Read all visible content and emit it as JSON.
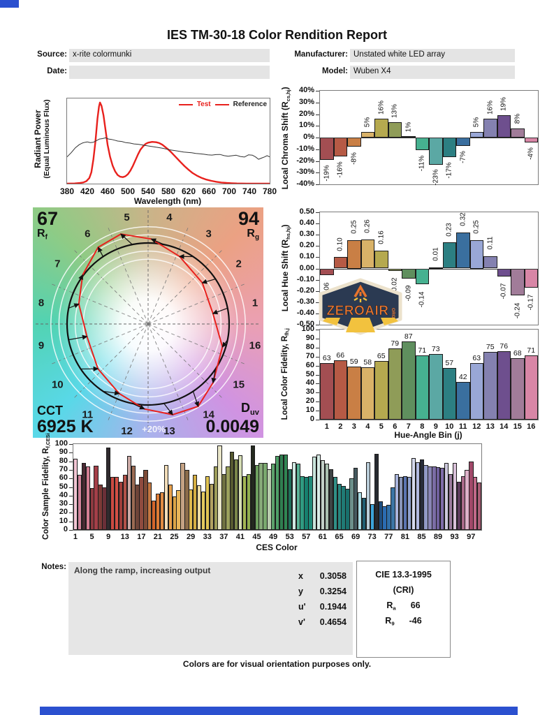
{
  "page": {
    "title": "IES TM-30-18 Color Rendition Report",
    "footer": "Colors are for visual orientation purposes only.",
    "accent_blue": "#2b50cf"
  },
  "header": {
    "source_label": "Source:",
    "source_value": "x-rite colormunki",
    "manufacturer_label": "Manufacturer:",
    "manufacturer_value": "Unstated white LED array",
    "date_label": "Date:",
    "date_value": "",
    "model_label": "Model:",
    "model_value": "Wuben X4"
  },
  "cvg": {
    "rf_value": "67",
    "rf_letter": "R",
    "rf_sub": "f",
    "rg_value": "94",
    "rg_letter": "R",
    "rg_sub": "g",
    "cct_label": "CCT",
    "cct_value": "6925 K",
    "duv_letter": "D",
    "duv_sub": "uv",
    "duv_value": "0.0049",
    "ring_label": "+20%",
    "bins": [
      "1",
      "2",
      "3",
      "4",
      "5",
      "6",
      "7",
      "8",
      "9",
      "10",
      "11",
      "12",
      "13",
      "14",
      "15",
      "16"
    ]
  },
  "logo": {
    "text": "ZEROAIR",
    "suffix": "ORG"
  },
  "notes": {
    "label": "Notes:",
    "text": "Along the ramp, increasing output"
  },
  "chromaticity": {
    "rows": [
      {
        "label": "x",
        "value": "0.3058"
      },
      {
        "label": "y",
        "value": "0.3254"
      },
      {
        "label": "u'",
        "value": "0.1944"
      },
      {
        "label": "v'",
        "value": "0.4654"
      }
    ]
  },
  "cie": {
    "title": "CIE 13.3-1995",
    "subtitle": "(CRI)",
    "rows": [
      {
        "letter": "R",
        "sub": "a",
        "value": "66"
      },
      {
        "letter": "R",
        "sub": "9",
        "value": "-46"
      }
    ]
  },
  "bin_colors": [
    "#a34e52",
    "#b65a45",
    "#c97f45",
    "#d9b268",
    "#b5a94f",
    "#8f9c58",
    "#5f8f5e",
    "#46b190",
    "#5ba8a4",
    "#2c7f82",
    "#3a6f9f",
    "#99a7d6",
    "#8481b0",
    "#6e4f8e",
    "#a17c99",
    "#d886a6"
  ],
  "chart_data": [
    {
      "id": "spd",
      "type": "line",
      "xlabel": "Wavelength (nm)",
      "ylabel_line1": "Radiant Power",
      "ylabel_line2": "(Equal Luminous Flux)",
      "xlim": [
        380,
        780
      ],
      "ylim": [
        0,
        1.05
      ],
      "xticks": [
        380,
        420,
        460,
        500,
        540,
        580,
        620,
        660,
        700,
        740,
        780
      ],
      "legend": [
        {
          "name": "Test",
          "swatch": "#e8211d",
          "text": "#e8211d"
        },
        {
          "name": "Reference",
          "swatch": "#e8211d",
          "text": "#222222"
        }
      ],
      "series": [
        {
          "name": "Test",
          "color": "#e8211d",
          "width": 2.4,
          "points": [
            [
              380,
              0
            ],
            [
              395,
              0.003
            ],
            [
              405,
              0.008
            ],
            [
              412,
              0.015
            ],
            [
              418,
              0.03
            ],
            [
              424,
              0.07
            ],
            [
              428,
              0.14
            ],
            [
              432,
              0.3
            ],
            [
              436,
              0.52
            ],
            [
              440,
              0.8
            ],
            [
              443,
              0.95
            ],
            [
              445,
              1.0
            ],
            [
              448,
              0.96
            ],
            [
              452,
              0.84
            ],
            [
              456,
              0.66
            ],
            [
              460,
              0.48
            ],
            [
              465,
              0.33
            ],
            [
              470,
              0.22
            ],
            [
              475,
              0.15
            ],
            [
              480,
              0.105
            ],
            [
              485,
              0.085
            ],
            [
              490,
              0.08
            ],
            [
              495,
              0.09
            ],
            [
              500,
              0.115
            ],
            [
              505,
              0.16
            ],
            [
              510,
              0.22
            ],
            [
              515,
              0.29
            ],
            [
              520,
              0.36
            ],
            [
              525,
              0.42
            ],
            [
              530,
              0.46
            ],
            [
              535,
              0.49
            ],
            [
              540,
              0.505
            ],
            [
              548,
              0.515
            ],
            [
              556,
              0.51
            ],
            [
              562,
              0.5
            ],
            [
              568,
              0.48
            ],
            [
              574,
              0.45
            ],
            [
              580,
              0.42
            ],
            [
              586,
              0.385
            ],
            [
              592,
              0.345
            ],
            [
              598,
              0.305
            ],
            [
              605,
              0.26
            ],
            [
              612,
              0.215
            ],
            [
              620,
              0.17
            ],
            [
              628,
              0.13
            ],
            [
              636,
              0.1
            ],
            [
              645,
              0.072
            ],
            [
              655,
              0.05
            ],
            [
              665,
              0.034
            ],
            [
              675,
              0.022
            ],
            [
              685,
              0.014
            ],
            [
              695,
              0.009
            ],
            [
              705,
              0.005
            ],
            [
              715,
              0.003
            ],
            [
              725,
              0.002
            ],
            [
              735,
              0.001
            ],
            [
              760,
              0
            ],
            [
              780,
              0
            ]
          ]
        },
        {
          "name": "Reference",
          "color": "#333333",
          "width": 1,
          "points": [
            [
              380,
              0.33
            ],
            [
              388,
              0.38
            ],
            [
              396,
              0.44
            ],
            [
              404,
              0.48
            ],
            [
              410,
              0.5
            ],
            [
              416,
              0.51
            ],
            [
              420,
              0.515
            ],
            [
              426,
              0.505
            ],
            [
              432,
              0.51
            ],
            [
              438,
              0.53
            ],
            [
              444,
              0.55
            ],
            [
              450,
              0.555
            ],
            [
              456,
              0.565
            ],
            [
              462,
              0.55
            ],
            [
              468,
              0.545
            ],
            [
              474,
              0.535
            ],
            [
              480,
              0.525
            ],
            [
              488,
              0.52
            ],
            [
              496,
              0.505
            ],
            [
              504,
              0.5
            ],
            [
              512,
              0.49
            ],
            [
              520,
              0.485
            ],
            [
              530,
              0.475
            ],
            [
              540,
              0.465
            ],
            [
              550,
              0.455
            ],
            [
              560,
              0.445
            ],
            [
              570,
              0.435
            ],
            [
              580,
              0.42
            ],
            [
              590,
              0.41
            ],
            [
              600,
              0.4
            ],
            [
              610,
              0.39
            ],
            [
              618,
              0.385
            ],
            [
              626,
              0.38
            ],
            [
              634,
              0.372
            ],
            [
              642,
              0.368
            ],
            [
              650,
              0.362
            ],
            [
              658,
              0.355
            ],
            [
              666,
              0.352
            ],
            [
              674,
              0.358
            ],
            [
              682,
              0.36
            ],
            [
              690,
              0.345
            ],
            [
              698,
              0.338
            ],
            [
              706,
              0.344
            ],
            [
              714,
              0.35
            ],
            [
              722,
              0.335
            ],
            [
              730,
              0.328
            ],
            [
              738,
              0.355
            ],
            [
              746,
              0.35
            ],
            [
              752,
              0.33
            ],
            [
              758,
              0.3
            ],
            [
              764,
              0.315
            ],
            [
              770,
              0.33
            ],
            [
              775,
              0.345
            ],
            [
              780,
              0.33
            ]
          ]
        }
      ]
    },
    {
      "id": "chroma",
      "type": "bar",
      "ylabel_main": "Local Chroma Shift (R",
      "ylabel_sub": "cs,hj",
      "ylabel_end": ")",
      "ylim": [
        -40,
        40
      ],
      "yticks": [
        {
          "v": 40,
          "t": "40%"
        },
        {
          "v": 30,
          "t": "30%"
        },
        {
          "v": 20,
          "t": "20%"
        },
        {
          "v": 10,
          "t": "10%"
        },
        {
          "v": 0,
          "t": "0%"
        },
        {
          "v": -10,
          "t": "-10%"
        },
        {
          "v": -20,
          "t": "-20%"
        },
        {
          "v": -30,
          "t": "-30%"
        },
        {
          "v": -40,
          "t": "-40%"
        }
      ],
      "categories": [
        1,
        2,
        3,
        4,
        5,
        6,
        7,
        8,
        9,
        10,
        11,
        12,
        13,
        14,
        15,
        16
      ],
      "values": [
        -19,
        -16,
        -8,
        5,
        16,
        13,
        1,
        -11,
        -23,
        -17,
        -7,
        5,
        16,
        19,
        8,
        -4
      ],
      "labels": [
        "-19%",
        "-16%",
        "-8%",
        "5%",
        "16%",
        "13%",
        "1%",
        "-11%",
        "-23%",
        "-17%",
        "-7%",
        "5%",
        "16%",
        "19%",
        "8%",
        "-4%"
      ]
    },
    {
      "id": "hue",
      "type": "bar",
      "ylabel_main": "Local Hue Shift (R",
      "ylabel_sub": "hs,hj",
      "ylabel_end": ")",
      "ylim": [
        -0.5,
        0.5
      ],
      "yticks": [
        {
          "v": 0.5,
          "t": "0.50"
        },
        {
          "v": 0.4,
          "t": "0.40"
        },
        {
          "v": 0.3,
          "t": "0.30"
        },
        {
          "v": 0.2,
          "t": "0.20"
        },
        {
          "v": 0.1,
          "t": "0.10"
        },
        {
          "v": 0,
          "t": "0.00"
        },
        {
          "v": -0.1,
          "t": "-0.10"
        },
        {
          "v": -0.2,
          "t": "-0.20"
        },
        {
          "v": -0.3,
          "t": "-0.30"
        },
        {
          "v": -0.4,
          "t": "-0.40"
        },
        {
          "v": -0.5,
          "t": "-0.50"
        }
      ],
      "categories": [
        1,
        2,
        3,
        4,
        5,
        6,
        7,
        8,
        9,
        10,
        11,
        12,
        13,
        14,
        15,
        16
      ],
      "values": [
        -0.06,
        0.1,
        0.25,
        0.26,
        0.16,
        -0.02,
        -0.09,
        -0.14,
        0.01,
        0.23,
        0.32,
        0.25,
        0.11,
        -0.07,
        -0.24,
        -0.17
      ],
      "labels": [
        "-0.06",
        "0.10",
        "0.25",
        "0.26",
        "0.16",
        "-0.02",
        "-0.09",
        "-0.14",
        "0.01",
        "0.23",
        "0.32",
        "0.25",
        "0.11",
        "-0.07",
        "-0.24",
        "-0.17"
      ]
    },
    {
      "id": "fid",
      "type": "bar",
      "ylabel_main": "Local Color Fidelity, R",
      "ylabel_sub": "fh,j",
      "ylabel_end": "",
      "xlabel": "Hue-Angle Bin (j)",
      "ylim": [
        0,
        100
      ],
      "yticks": [
        {
          "v": 100,
          "t": "100"
        },
        {
          "v": 90,
          "t": "90"
        },
        {
          "v": 80,
          "t": "80"
        },
        {
          "v": 70,
          "t": "70"
        },
        {
          "v": 60,
          "t": "60"
        },
        {
          "v": 50,
          "t": "50"
        },
        {
          "v": 40,
          "t": "40"
        },
        {
          "v": 30,
          "t": "30"
        },
        {
          "v": 20,
          "t": "20"
        },
        {
          "v": 10,
          "t": "10"
        },
        {
          "v": 0,
          "t": "0"
        }
      ],
      "xticks": [
        "1",
        "2",
        "3",
        "4",
        "5",
        "6",
        "7",
        "8",
        "9",
        "10",
        "11",
        "12",
        "13",
        "14",
        "15",
        "16"
      ],
      "values": [
        63,
        66,
        59,
        58,
        65,
        79,
        87,
        71,
        73,
        57,
        42,
        63,
        75,
        76,
        68,
        71
      ],
      "labels": [
        "63",
        "66",
        "59",
        "58",
        "65",
        "79",
        "87",
        "71",
        "73",
        "57",
        "42",
        "63",
        "75",
        "76",
        "68",
        "71"
      ]
    },
    {
      "id": "ces",
      "type": "bar",
      "ylabel_main": "Color Sample Fidelity, R",
      "ylabel_sub": "f,CESi",
      "ylabel_end": "",
      "xlabel": "CES Color",
      "ylim": [
        0,
        100
      ],
      "yticks": [
        {
          "v": 100,
          "t": "100"
        },
        {
          "v": 90,
          "t": "90"
        },
        {
          "v": 80,
          "t": "80"
        },
        {
          "v": 70,
          "t": "70"
        },
        {
          "v": 60,
          "t": "60"
        },
        {
          "v": 50,
          "t": "50"
        },
        {
          "v": 40,
          "t": "40"
        },
        {
          "v": 30,
          "t": "30"
        },
        {
          "v": 20,
          "t": "20"
        },
        {
          "v": 10,
          "t": "10"
        },
        {
          "v": 0,
          "t": "0"
        }
      ],
      "xticks": [
        "1",
        "5",
        "9",
        "13",
        "17",
        "21",
        "25",
        "29",
        "33",
        "37",
        "41",
        "45",
        "49",
        "53",
        "57",
        "61",
        "65",
        "69",
        "73",
        "77",
        "81",
        "85",
        "89",
        "93",
        "97"
      ],
      "values": [
        83,
        64,
        78,
        74,
        49,
        75,
        53,
        50,
        96,
        62,
        62,
        56,
        64,
        86,
        75,
        53,
        62,
        70,
        55,
        34,
        42,
        44,
        76,
        53,
        39,
        46,
        78,
        70,
        47,
        64,
        52,
        45,
        63,
        54,
        74,
        98,
        65,
        74,
        91,
        82,
        87,
        63,
        65,
        98,
        76,
        78,
        78,
        71,
        77,
        86,
        88,
        88,
        71,
        79,
        77,
        63,
        62,
        63,
        85,
        88,
        81,
        77,
        71,
        62,
        54,
        51,
        48,
        60,
        72,
        44,
        37,
        79,
        30,
        89,
        33,
        28,
        29,
        50,
        65,
        62,
        63,
        62,
        84,
        79,
        82,
        76,
        74,
        74,
        73,
        72,
        78,
        65,
        78,
        56,
        63,
        70,
        80,
        62,
        55
      ],
      "colors": [
        "#f2c6d4",
        "#d2849c",
        "#4b2a34",
        "#d47e94",
        "#8e3a40",
        "#a43f48",
        "#7c3a36",
        "#6b3038",
        "#302a2e",
        "#cb4a42",
        "#d24f44",
        "#a03e3a",
        "#b35249",
        "#cbaaa6",
        "#9c6b53",
        "#6f4539",
        "#904b3f",
        "#7d4b37",
        "#c57841",
        "#d3652b",
        "#de7c36",
        "#e18b43",
        "#f3deb9",
        "#e9a14c",
        "#dba446",
        "#e9b659",
        "#c5a385",
        "#8b6b49",
        "#deb950",
        "#d5ae43",
        "#ebdaa1",
        "#e4c95f",
        "#e1c453",
        "#b1a161",
        "#9d9d59",
        "#eae7c9",
        "#6f7141",
        "#9ba15d",
        "#565930",
        "#7b8749",
        "#d7deb5",
        "#a3b653",
        "#90af4f",
        "#24291f",
        "#6ea15f",
        "#87a979",
        "#7aa96e",
        "#bacdaf",
        "#5da16b",
        "#4e9f67",
        "#2f7e50",
        "#308653",
        "#20705b",
        "#d0e9e3",
        "#5ab397",
        "#309b81",
        "#16806f",
        "#1f8b79",
        "#c9e5db",
        "#d9ede7",
        "#c3d0c7",
        "#a9c0af",
        "#3e4445",
        "#309087",
        "#28867f",
        "#207b75",
        "#19706c",
        "#6c908b",
        "#45595f",
        "#abdde5",
        "#205f73",
        "#b9cdd9",
        "#3ca4d9",
        "#272a2f",
        "#1e4f81",
        "#2b6cb1",
        "#306fa9",
        "#3b75a5",
        "#a9b5dd",
        "#8995b9",
        "#5b75b1",
        "#8fa1cd",
        "#d5d9ed",
        "#b1b9e1",
        "#272c39",
        "#9199c5",
        "#8985b5",
        "#7b6da5",
        "#70609d",
        "#7e6ca9",
        "#cdc9dd",
        "#9b7b9d",
        "#d9c1d9",
        "#5d3b5d",
        "#a96989",
        "#ddb1c9",
        "#a14969",
        "#c16989",
        "#a95d75"
      ]
    }
  ]
}
